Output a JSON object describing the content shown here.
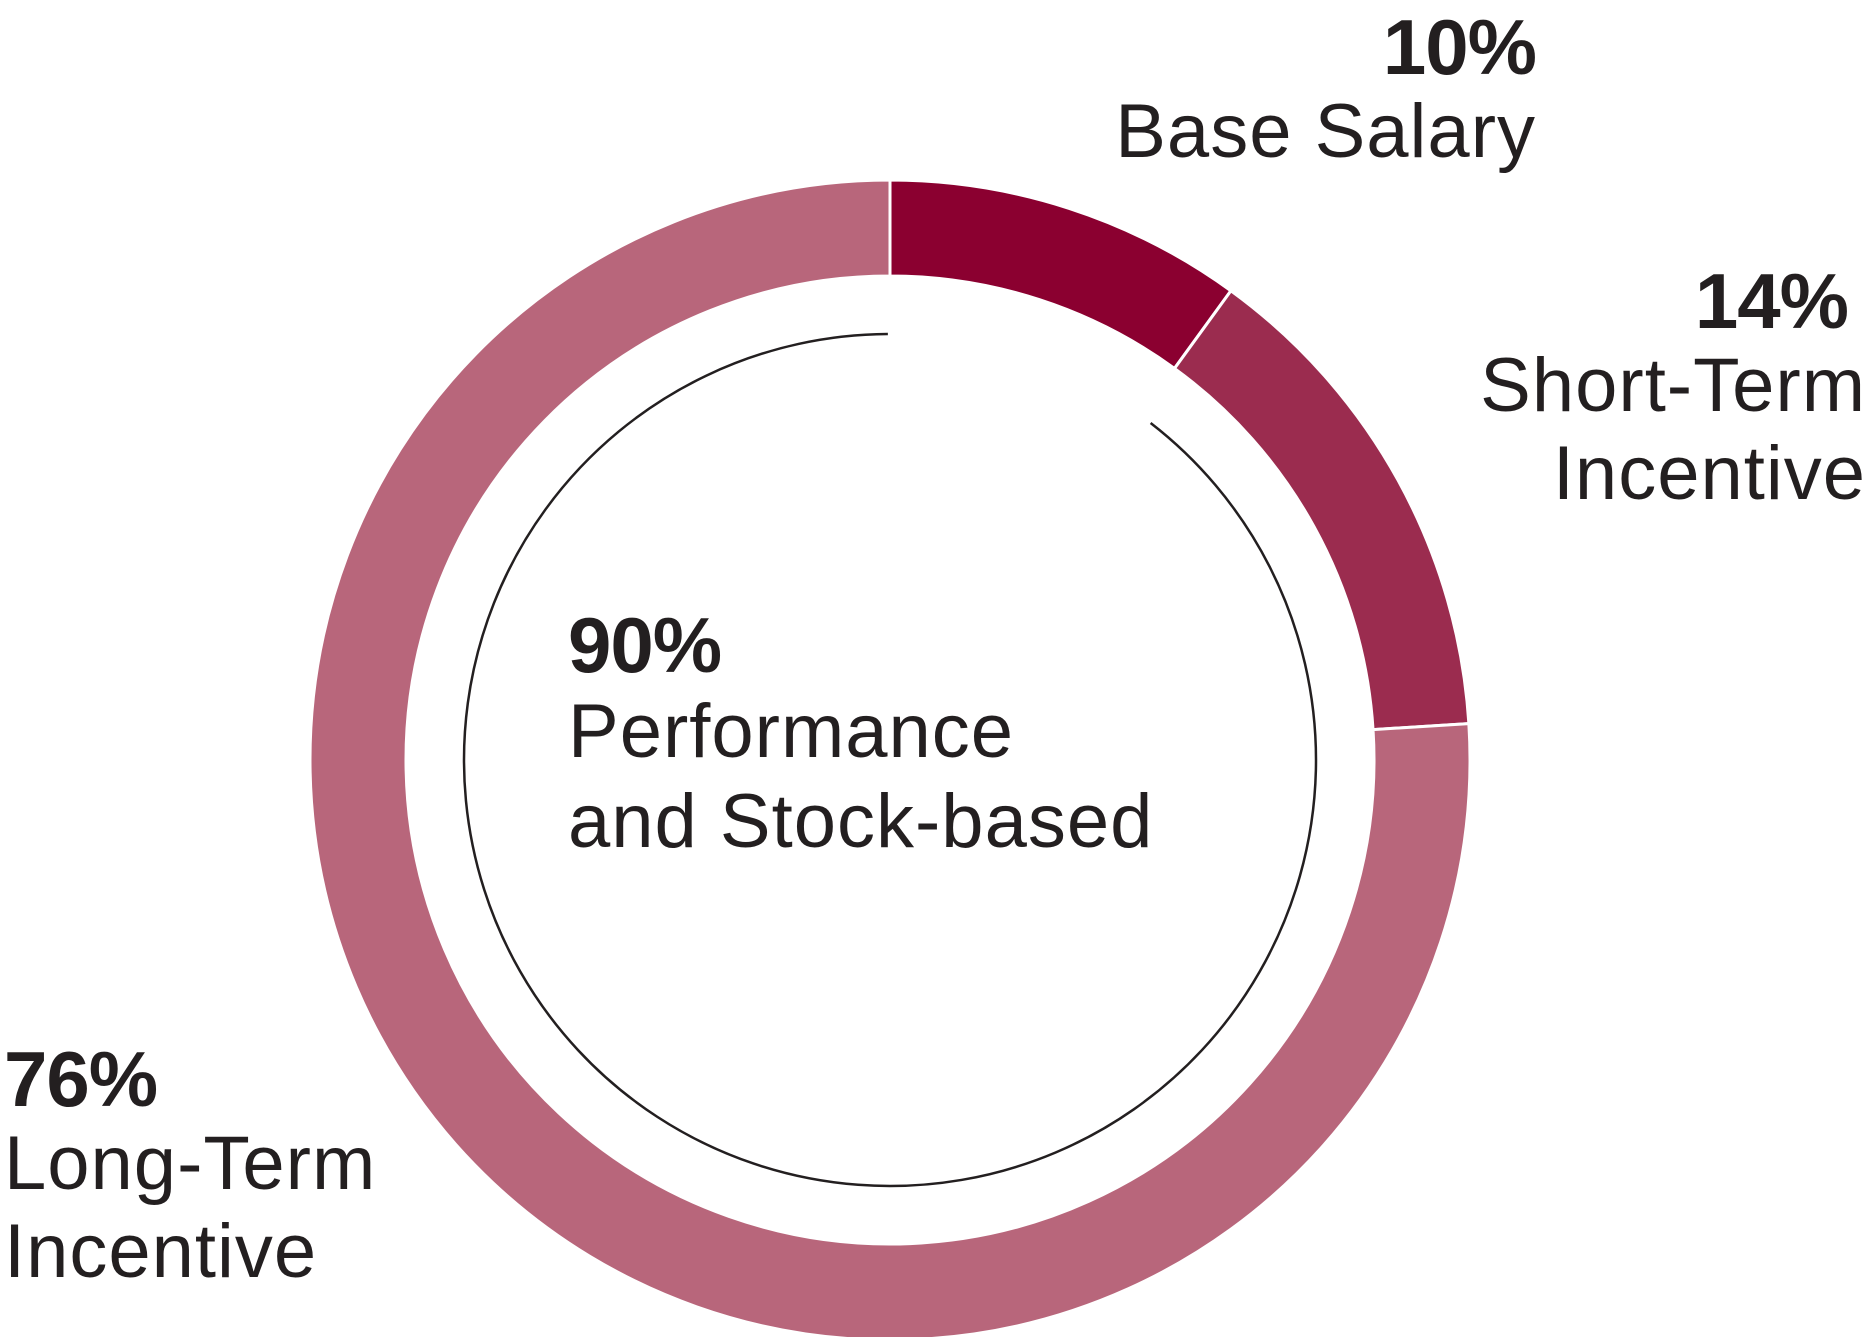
{
  "chart_data": {
    "type": "pie",
    "style": "donut",
    "slices": [
      {
        "label": "Base Salary",
        "value": 10,
        "value_label": "10%",
        "color": "#8b0030"
      },
      {
        "label": "Short-Term Incentive",
        "value": 14,
        "value_label": "14%",
        "color": "#9b2c4f"
      },
      {
        "label": "Long-Term Incentive",
        "value": 76,
        "value_label": "76%",
        "color": "#b8667b"
      }
    ],
    "center_annotation": {
      "value_label": "90%",
      "text_line1": "Performance",
      "text_line2": "and Stock-based",
      "spans": [
        "Short-Term Incentive",
        "Long-Term Incentive"
      ]
    },
    "label_lines": {
      "base_salary": [
        "Base Salary"
      ],
      "short_term": [
        "Short-Term",
        "Incentive"
      ],
      "long_term": [
        "Long-Term",
        "Incentive"
      ]
    }
  }
}
